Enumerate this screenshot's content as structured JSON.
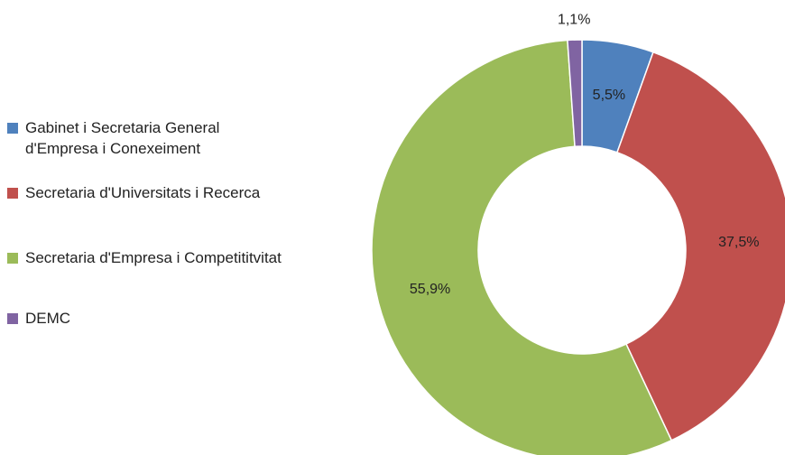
{
  "chart_data": {
    "type": "donut",
    "categories": [
      "Gabinet i Secretaria General d'Empresa i Conexeiment",
      "Secretaria d'Universitats i Recerca",
      "Secretaria d'Empresa i Competititvitat",
      "DEMC"
    ],
    "values": [
      5.5,
      37.5,
      55.9,
      1.1
    ],
    "value_labels": [
      "5,5%",
      "37,5%",
      "55,9%",
      "1,1%"
    ],
    "colors": [
      "#4f81bd",
      "#c0504d",
      "#9bbb59",
      "#8064a2"
    ],
    "legend": "left"
  }
}
